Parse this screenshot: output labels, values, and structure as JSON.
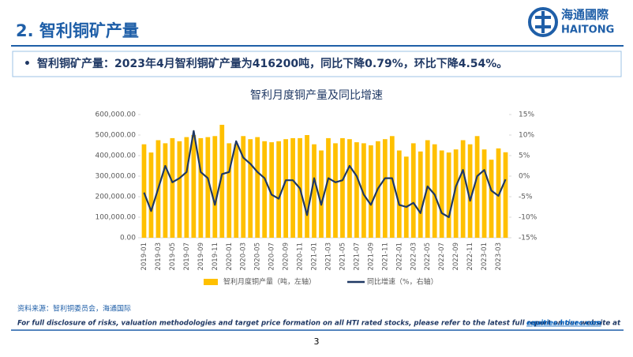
{
  "header": {
    "title": "2. 智利铜矿产量",
    "logo_cn": "海通國際",
    "logo_en": "HAITONG"
  },
  "bullet": "智利铜矿产量：2023年4月智利铜矿产量为416200吨，同比下降0.79%，环比下降4.54%。",
  "chart_data": {
    "type": "combo",
    "title": "智利月度铜产量及同比增速",
    "categories": [
      "2019-01",
      null,
      "2019-03",
      null,
      "2019-05",
      null,
      "2019-07",
      null,
      "2019-09",
      null,
      "2019-11",
      null,
      "2020-01",
      null,
      "2020-03",
      null,
      "2020-05",
      null,
      "2020-07",
      null,
      "2020-09",
      null,
      "2020-11",
      null,
      "2021-01",
      null,
      "2021-03",
      null,
      "2021-05",
      null,
      "2021-07",
      null,
      "2021-09",
      null,
      "2021-11",
      null,
      "2022-01",
      null,
      "2022-03",
      null,
      "2022-05",
      null,
      "2022-07",
      null,
      "2022-09",
      null,
      "2022-11",
      null,
      "2023-01",
      null,
      "2023-03",
      null
    ],
    "series": [
      {
        "name": "智利月度铜产量（吨，左轴）",
        "type": "bar",
        "color": "#ffc000",
        "values": [
          455000,
          415000,
          475000,
          460000,
          485000,
          470000,
          490000,
          500000,
          485000,
          490000,
          495000,
          550000,
          460000,
          455000,
          495000,
          480000,
          490000,
          470000,
          465000,
          470000,
          480000,
          485000,
          485000,
          500000,
          455000,
          425000,
          485000,
          460000,
          485000,
          480000,
          465000,
          460000,
          450000,
          470000,
          480000,
          495000,
          425000,
          395000,
          460000,
          420000,
          475000,
          455000,
          425000,
          415000,
          430000,
          475000,
          455000,
          495000,
          430000,
          380000,
          435000,
          416200
        ]
      },
      {
        "name": "同比增速（%，右轴）",
        "type": "line",
        "axis": "y2",
        "color": "#1f3864",
        "values": [
          -4,
          -8.5,
          -3,
          2.5,
          -1.5,
          -0.5,
          1,
          11,
          1,
          -0.5,
          -7,
          0.5,
          1,
          8.5,
          4.5,
          3,
          1,
          -0.5,
          -4.5,
          -5.5,
          -1,
          -1,
          -3,
          -9.5,
          -0.5,
          -7,
          -0.5,
          -1.5,
          -1,
          2.5,
          0,
          -4.5,
          -7,
          -3,
          -0.5,
          -0.5,
          -7,
          -7.5,
          -6.5,
          -9,
          -2.5,
          -4.5,
          -9,
          -10,
          -2.5,
          1.5,
          -6,
          0,
          1.5,
          -3.5,
          -4.8,
          -0.79
        ]
      }
    ],
    "ylim": [
      0,
      600000
    ],
    "yticks": [
      {
        "value": 0,
        "label": "0.00"
      },
      {
        "value": 100000,
        "label": "100,000.00"
      },
      {
        "value": 200000,
        "label": "200,000.00"
      },
      {
        "value": 300000,
        "label": "300,000.00"
      },
      {
        "value": 400000,
        "label": "400,000.00"
      },
      {
        "value": 500000,
        "label": "500,000.00"
      },
      {
        "value": 600000,
        "label": "600,000.00"
      }
    ],
    "y2lim": [
      -15,
      15
    ],
    "y2ticks": [
      {
        "value": -15,
        "label": "-15%"
      },
      {
        "value": -10,
        "label": "-10%"
      },
      {
        "value": -5,
        "label": "-5%"
      },
      {
        "value": 0,
        "label": "0%"
      },
      {
        "value": 5,
        "label": "5%"
      },
      {
        "value": 10,
        "label": "10%"
      },
      {
        "value": 15,
        "label": "15%"
      }
    ],
    "legend": "bottom"
  },
  "source": "资料来源：智利铜委员会，海通国际",
  "disclaimer": {
    "text": "For full disclosure of risks, valuation methodologies and target price formation on all HTI rated stocks, please refer to the latest full report on our website at",
    "link": "equities.htisec.com"
  },
  "page_number": "3"
}
